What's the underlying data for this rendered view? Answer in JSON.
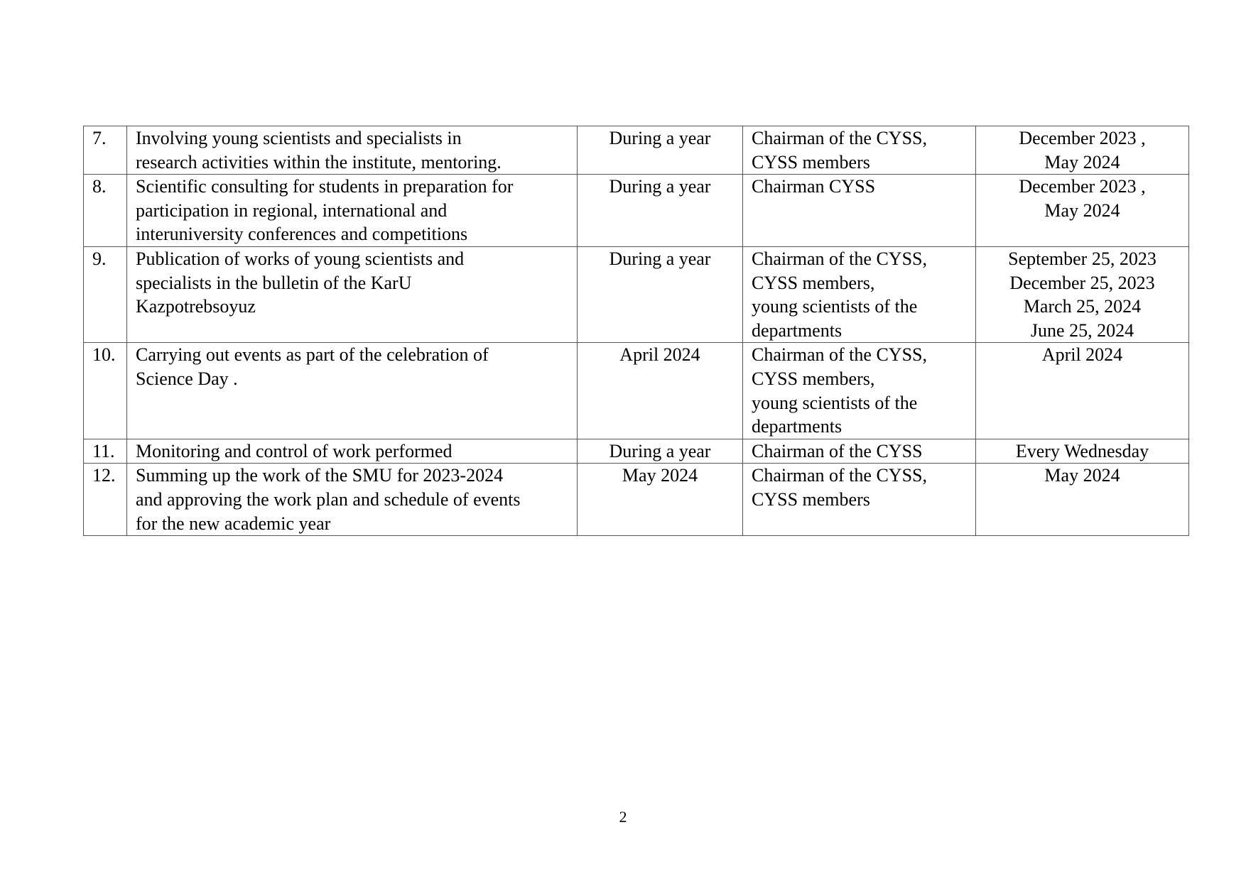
{
  "rows": [
    {
      "num": "7.",
      "activity": "Involving young scientists and specialists in\nresearch activities within the institute, mentoring.",
      "period": "During a year",
      "responsible": "Chairman of the CYSS,\nCYSS members",
      "deadline": "December 2023 ,\nMay 2024"
    },
    {
      "num": "8.",
      "activity": "Scientific consulting for students in preparation for\nparticipation in regional, international and\ninteruniversity conferences and competitions",
      "period": "During a year",
      "responsible": "Chairman CYSS",
      "deadline": "December 2023 ,\nMay 2024"
    },
    {
      "num": "9.",
      "activity": "Publication of works of young scientists and\nspecialists in the bulletin of the KarU\nKazpotrebsoyuz",
      "period": "During a year",
      "responsible": "Chairman of the CYSS,\nCYSS members,\nyoung scientists of the\ndepartments",
      "deadline": "September 25, 2023\nDecember 25, 2023\nMarch 25, 2024\nJune 25, 2024"
    },
    {
      "num": "10.",
      "activity": "Carrying out events as part of the celebration of\nScience Day .",
      "period": "April 2024",
      "responsible": "Chairman of the CYSS,\nCYSS members,\nyoung scientists of the\ndepartments",
      "deadline": "April 2024"
    },
    {
      "num": "11.",
      "activity": "Monitoring and control of work performed",
      "period": "During a year",
      "responsible": "Chairman of the CYSS",
      "deadline": "Every Wednesday"
    },
    {
      "num": "12.",
      "activity": "Summing up the work of the SMU for 2023-2024\nand approving the work plan and schedule of events\nfor the new academic year",
      "period": "May 2024",
      "responsible": "Chairman of the CYSS,\nCYSS members",
      "deadline": "May 2024"
    }
  ],
  "page_number": "2"
}
